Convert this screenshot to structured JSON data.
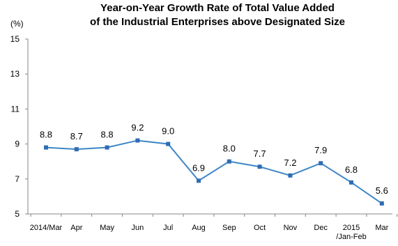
{
  "chart_data": {
    "type": "line",
    "title_lines": [
      "Year-on-Year Growth Rate of Total Value Added",
      "of the Industrial Enterprises above Designated Size"
    ],
    "unit": "(%)",
    "xlabel": "",
    "ylabel": "",
    "ylim": [
      5,
      15
    ],
    "yticks": [
      "15",
      "13",
      "11",
      "9",
      "7",
      "5"
    ],
    "categories": [
      [
        "2014/Mar"
      ],
      [
        "Apr"
      ],
      [
        "May"
      ],
      [
        "Jun"
      ],
      [
        "Jul"
      ],
      [
        "Aug"
      ],
      [
        "Sep"
      ],
      [
        "Oct"
      ],
      [
        "Nov"
      ],
      [
        "Dec"
      ],
      [
        "2015",
        "/Jan-Feb"
      ],
      [
        "Mar"
      ]
    ],
    "series": [
      {
        "values": [
          8.8,
          8.7,
          8.8,
          9.2,
          9.0,
          6.9,
          8.0,
          7.7,
          7.2,
          7.9,
          6.8,
          5.6
        ],
        "labels": [
          "8.8",
          "8.7",
          "8.8",
          "9.2",
          "9.0",
          "6.9",
          "8.0",
          "7.7",
          "7.2",
          "7.9",
          "6.8",
          "5.6"
        ]
      }
    ],
    "grid": false,
    "legend": "none",
    "colors": {
      "line": "#3d85c6",
      "marker": "#2e6db4",
      "axis": "#868686",
      "text": "#000000"
    }
  }
}
